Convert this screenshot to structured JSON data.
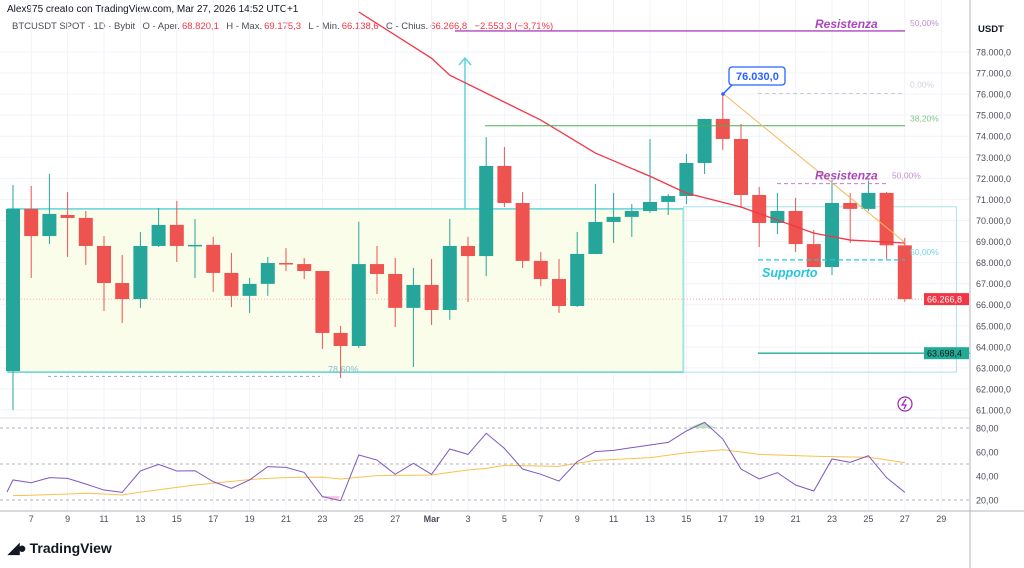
{
  "header": {
    "credit": "Alex975 creato con TradingView.com, Mar 27, 2026 14:52 UTC+1",
    "symbol": "BTCUSDT SPOT · 1D · Bybit",
    "open_label": "O - Aper.",
    "open": "68.820,1",
    "high_label": "H - Max.",
    "high": "69.175,3",
    "low_label": "L - Min.",
    "low": "66.138,6",
    "close_label": "C - Chius.",
    "close": "66.266,8",
    "change": "−2.553,3 (−3,71%)"
  },
  "colors": {
    "up": "#26a69a",
    "down": "#ef5350",
    "ma": "#f23645",
    "rsi": "#7e57c2",
    "rsi_ma": "#f7a600",
    "box": "#5fd3d8",
    "box_fill": "#fafde9",
    "fib_green": "#4caf50",
    "resist": "#ab47bc",
    "support": "#26c6da",
    "callout": "#2962ff"
  },
  "axis": {
    "currency": "USDT",
    "price_ticks": [
      "78.000,0",
      "77.000,0",
      "76.000,0",
      "75.000,0",
      "74.000,0",
      "73.000,0",
      "72.000,0",
      "71.000,0",
      "70.000,0",
      "69.000,0",
      "68.000,0",
      "67.000,0",
      "66.000,0",
      "65.000,0",
      "64.000,0",
      "63.000,0",
      "62.000,0",
      "61.000,0"
    ],
    "rsi_ticks": [
      "80,00",
      "60,00",
      "40,00",
      "20,00"
    ],
    "date_ticks": [
      [
        "7",
        "Feb 7"
      ],
      [
        "9",
        "Feb 9"
      ],
      [
        "11",
        "Feb 11"
      ],
      [
        "13",
        "Feb 13"
      ],
      [
        "15",
        "Feb 15"
      ],
      [
        "17",
        "Feb 17"
      ],
      [
        "19",
        "Feb 19"
      ],
      [
        "21",
        "Feb 21"
      ],
      [
        "23",
        "Feb 23"
      ],
      [
        "25",
        "Feb 25"
      ],
      [
        "27",
        "Feb 27"
      ],
      [
        "Mar",
        "Mar 1"
      ],
      [
        "3",
        "Mar 3"
      ],
      [
        "5",
        "Mar 5"
      ],
      [
        "7",
        "Mar 7"
      ],
      [
        "9",
        "Mar 9"
      ],
      [
        "11",
        "Mar 11"
      ],
      [
        "13",
        "Mar 13"
      ],
      [
        "15",
        "Mar 15"
      ],
      [
        "17",
        "Mar 17"
      ],
      [
        "19",
        "Mar 19"
      ],
      [
        "21",
        "Mar 21"
      ],
      [
        "23",
        "Mar 23"
      ],
      [
        "25",
        "Mar 25"
      ],
      [
        "27",
        "Mar 27"
      ],
      [
        "29",
        "Mar 29"
      ]
    ],
    "last_price_badge": "66.266,8",
    "support_badge": "63.698,4"
  },
  "annotations": {
    "top_resistance": {
      "label": "Resistenza",
      "pct": "50,00%",
      "price": 79000
    },
    "fib_0": {
      "pct": "0,00%",
      "price": 76030
    },
    "fib_382": {
      "pct": "38,20%",
      "price": 74500
    },
    "resistance": {
      "label": "Resistenza",
      "pct": "50,00%",
      "price": 71750
    },
    "support": {
      "label": "Supporto",
      "pct": "50,00%",
      "price": 68130
    },
    "fib_786": {
      "pct": "78,60%",
      "price": 62600
    },
    "high_callout": "76.030,0",
    "support_line_price": 63698.4,
    "range_box": {
      "top": 70550,
      "bottom": 62800,
      "from": "Feb 6",
      "to": "Mar 15"
    }
  },
  "chart_data": {
    "type": "candlestick",
    "symbol": "BTCUSDT",
    "ylim": [
      61000,
      78000
    ],
    "dates": [
      "Feb 6",
      "Feb 7",
      "Feb 8",
      "Feb 9",
      "Feb 10",
      "Feb 11",
      "Feb 12",
      "Feb 13",
      "Feb 14",
      "Feb 15",
      "Feb 16",
      "Feb 17",
      "Feb 18",
      "Feb 19",
      "Feb 20",
      "Feb 21",
      "Feb 22",
      "Feb 23",
      "Feb 24",
      "Feb 25",
      "Feb 26",
      "Feb 27",
      "Feb 28",
      "Mar 1",
      "Mar 2",
      "Mar 3",
      "Mar 4",
      "Mar 5",
      "Mar 6",
      "Mar 7",
      "Mar 8",
      "Mar 9",
      "Mar 10",
      "Mar 11",
      "Mar 12",
      "Mar 13",
      "Mar 14",
      "Mar 15",
      "Mar 16",
      "Mar 17",
      "Mar 18",
      "Mar 19",
      "Mar 20",
      "Mar 21",
      "Mar 22",
      "Mar 23",
      "Mar 24",
      "Mar 25",
      "Mar 26",
      "Mar 27"
    ],
    "ohlc": [
      [
        62850,
        71690,
        61000,
        70550
      ],
      [
        70550,
        71640,
        67270,
        69260
      ],
      [
        69260,
        72210,
        68880,
        70310
      ],
      [
        70260,
        71350,
        68270,
        70120
      ],
      [
        70120,
        70450,
        67890,
        68790
      ],
      [
        68790,
        69260,
        65700,
        67030
      ],
      [
        67030,
        68360,
        65130,
        66270
      ],
      [
        66270,
        69450,
        65850,
        68790
      ],
      [
        68790,
        70590,
        68740,
        69790
      ],
      [
        69790,
        70930,
        68030,
        68790
      ],
      [
        68790,
        70070,
        67270,
        68840
      ],
      [
        68840,
        69220,
        66610,
        67510
      ],
      [
        67510,
        68460,
        65890,
        66420
      ],
      [
        66420,
        67270,
        65610,
        66990
      ],
      [
        66990,
        68270,
        66420,
        67980
      ],
      [
        67980,
        68690,
        67600,
        67930
      ],
      [
        67930,
        68220,
        67220,
        67600
      ],
      [
        67600,
        67600,
        63900,
        64660
      ],
      [
        64660,
        64990,
        62520,
        64040
      ],
      [
        64040,
        69940,
        63950,
        67930
      ],
      [
        67930,
        68790,
        66510,
        67460
      ],
      [
        67460,
        68220,
        64940,
        65850
      ],
      [
        65850,
        67750,
        63040,
        66940
      ],
      [
        66940,
        68170,
        65040,
        65750
      ],
      [
        65750,
        70070,
        65280,
        68790
      ],
      [
        68790,
        69220,
        66130,
        68310
      ],
      [
        68310,
        73960,
        67360,
        72590
      ],
      [
        72590,
        73490,
        70640,
        70830
      ],
      [
        70830,
        71350,
        67750,
        68080
      ],
      [
        68080,
        68500,
        66890,
        67220
      ],
      [
        67220,
        68170,
        65610,
        65940
      ],
      [
        65940,
        69450,
        65890,
        68410
      ],
      [
        68410,
        71730,
        68400,
        69930
      ],
      [
        69930,
        71310,
        68930,
        70170
      ],
      [
        70170,
        70780,
        69220,
        70450
      ],
      [
        70450,
        73870,
        70360,
        70880
      ],
      [
        70880,
        71250,
        70260,
        71160
      ],
      [
        71160,
        73160,
        70780,
        72730
      ],
      [
        72730,
        74830,
        72210,
        74820
      ],
      [
        74820,
        76030,
        73350,
        73870
      ],
      [
        73870,
        74580,
        70590,
        71210
      ],
      [
        71210,
        71590,
        68740,
        69880
      ],
      [
        69880,
        71310,
        69360,
        70450
      ],
      [
        70450,
        71070,
        68500,
        68880
      ],
      [
        68880,
        69550,
        67790,
        67790
      ],
      [
        67790,
        71920,
        67410,
        70830
      ],
      [
        70830,
        71310,
        68930,
        70550
      ],
      [
        70550,
        71900,
        70450,
        71310
      ],
      [
        71310,
        71350,
        68170,
        68820
      ],
      [
        68820,
        69175,
        66139,
        66267
      ]
    ],
    "ma": [
      [
        "Feb 25",
        79900
      ],
      [
        "Mar 1",
        77700
      ],
      [
        "Mar 2",
        76900
      ],
      [
        "Mar 7",
        74770
      ],
      [
        "Mar 10",
        73200
      ],
      [
        "Mar 13",
        72100
      ],
      [
        "Mar 15",
        71300
      ],
      [
        "Mar 18",
        70640
      ],
      [
        "Mar 20",
        70020
      ],
      [
        "Mar 22",
        69400
      ],
      [
        "Mar 24",
        69070
      ],
      [
        "Mar 27",
        68930
      ]
    ],
    "rsi": [
      36.7,
      34.4,
      38.6,
      38,
      33.3,
      28.3,
      26.4,
      44.2,
      49.7,
      44.2,
      44.4,
      35.3,
      29.7,
      36.7,
      47.8,
      47.2,
      43,
      22.8,
      19.4,
      57.5,
      53.3,
      41.4,
      50.6,
      41.4,
      62.5,
      58,
      75.6,
      63,
      45.8,
      41.4,
      35.8,
      52,
      60.3,
      61.4,
      63.6,
      65.8,
      68,
      77.5,
      84.7,
      70.8,
      45.8,
      37.5,
      42.8,
      32.5,
      27.5,
      54.2,
      51.4,
      56.9,
      38.6,
      26.4
    ],
    "rsi_ma": [
      23.6,
      24,
      24.5,
      25,
      25.6,
      25,
      24.2,
      26.5,
      28.5,
      30.5,
      32.5,
      34,
      35.5,
      37,
      38,
      38.6,
      39,
      39.1,
      37.5,
      39,
      40.3,
      40.5,
      40.6,
      40.8,
      43,
      45,
      46.4,
      48.9,
      48.6,
      48.3,
      48,
      50.6,
      53,
      53.8,
      54.5,
      55.3,
      57.3,
      59.4,
      60.6,
      61.9,
      60,
      58,
      57.5,
      57,
      56.5,
      56.1,
      55.8,
      55.6,
      53.4,
      51.1
    ],
    "rsi_levels": [
      80,
      50,
      20
    ],
    "rsi_ylim": [
      20,
      80
    ]
  },
  "brand": {
    "name": "TradingView"
  }
}
